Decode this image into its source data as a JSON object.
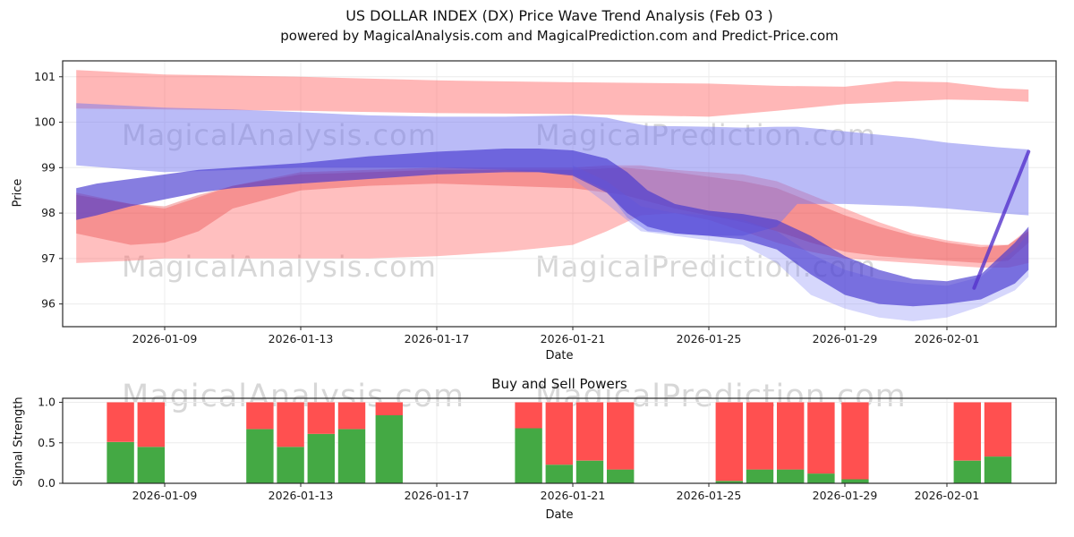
{
  "header": {
    "title": "US DOLLAR INDEX (DX) Price Wave Trend Analysis (Feb 03 )",
    "subtitle": "powered by MagicalAnalysis.com and MagicalPrediction.com and Predict-Price.com"
  },
  "watermarks": {
    "analysis": "MagicalAnalysis.com",
    "prediction": "MagicalPrediction.com"
  },
  "colors": {
    "red_band": "#ff5f5f",
    "red_inner_band": "#e63c3c",
    "blue_band": "#7678f0",
    "blue_pale_band": "#8a8df5",
    "dark_core_band": "#4538cf",
    "purple_line": "#5533cc",
    "bar_green": "#44a944",
    "bar_red": "#ff5050",
    "grid": "#ececec",
    "axis": "#2a2a2a",
    "watermark_gray": "#969696"
  },
  "chart_data": [
    {
      "type": "area",
      "title": "US DOLLAR INDEX (DX) Price Wave Trend Analysis (Feb 03 )",
      "subtitle": "powered by MagicalAnalysis.com and MagicalPrediction.com and Predict-Price.com",
      "xlabel": "Date",
      "ylabel": "Price",
      "x_start_date": "2026-01-06",
      "x_unit": "days since x_start_date",
      "ylim": [
        95.5,
        101.35
      ],
      "grid": true,
      "legend": false,
      "yticks": [
        "96",
        "97",
        "98",
        "99",
        "100",
        "101"
      ],
      "ytick_values": [
        96,
        97,
        98,
        99,
        100,
        101
      ],
      "xticks": [
        {
          "day": 3,
          "label": "2026-01-09"
        },
        {
          "day": 7,
          "label": "2026-01-13"
        },
        {
          "day": 11,
          "label": "2026-01-17"
        },
        {
          "day": 15,
          "label": "2026-01-21"
        },
        {
          "day": 19,
          "label": "2026-01-25"
        },
        {
          "day": 23,
          "label": "2026-01-29"
        },
        {
          "day": 26,
          "label": "2026-02-01"
        }
      ],
      "bands": [
        {
          "name": "upper-red-forecast-band",
          "color": "#ff5f5f",
          "opacity": 0.45,
          "points": [
            [
              0.4,
              101.15,
              100.3
            ],
            [
              3,
              101.05,
              100.28
            ],
            [
              7,
              101.0,
              100.25
            ],
            [
              11,
              100.92,
              100.2
            ],
            [
              15,
              100.88,
              100.18
            ],
            [
              19,
              100.85,
              100.12
            ],
            [
              21,
              100.8,
              100.25
            ],
            [
              23,
              100.78,
              100.4
            ],
            [
              24.5,
              100.9,
              100.45
            ],
            [
              26,
              100.88,
              100.5
            ],
            [
              27.5,
              100.75,
              100.48
            ],
            [
              28.4,
              100.72,
              100.45
            ]
          ]
        },
        {
          "name": "lower-red-wide-band",
          "color": "#ff5f5f",
          "opacity": 0.4,
          "points": [
            [
              0.4,
              98.45,
              96.9
            ],
            [
              2,
              98.2,
              96.95
            ],
            [
              3,
              98.1,
              97.0
            ],
            [
              4,
              98.35,
              97.0
            ],
            [
              5,
              98.6,
              97.0
            ],
            [
              7,
              98.9,
              97.0
            ],
            [
              9,
              98.95,
              97.0
            ],
            [
              11,
              99.0,
              97.05
            ],
            [
              13,
              99.0,
              97.15
            ],
            [
              15,
              99.0,
              97.3
            ],
            [
              16,
              99.05,
              97.6
            ],
            [
              17,
              99.05,
              97.95
            ],
            [
              18,
              98.95,
              98.0
            ],
            [
              19,
              98.9,
              97.85
            ],
            [
              20,
              98.85,
              97.6
            ],
            [
              21,
              98.7,
              97.35
            ],
            [
              22,
              98.4,
              97.15
            ],
            [
              23,
              98.1,
              97.0
            ],
            [
              24,
              97.8,
              96.95
            ],
            [
              25,
              97.55,
              96.9
            ],
            [
              26,
              97.4,
              96.85
            ],
            [
              27,
              97.3,
              96.8
            ],
            [
              27.8,
              97.3,
              96.8
            ],
            [
              28.4,
              97.65,
              96.9
            ]
          ]
        },
        {
          "name": "inner-red-band",
          "color": "#e63c3c",
          "opacity": 0.35,
          "points": [
            [
              0.4,
              98.4,
              97.55
            ],
            [
              2,
              98.2,
              97.3
            ],
            [
              3,
              98.15,
              97.35
            ],
            [
              4,
              98.4,
              97.6
            ],
            [
              5,
              98.6,
              98.1
            ],
            [
              7,
              98.85,
              98.5
            ],
            [
              9,
              98.9,
              98.6
            ],
            [
              11,
              98.95,
              98.65
            ],
            [
              13,
              98.95,
              98.6
            ],
            [
              15,
              98.95,
              98.55
            ],
            [
              16.5,
              99.0,
              98.4
            ],
            [
              18,
              98.9,
              98.1
            ],
            [
              19,
              98.8,
              97.95
            ],
            [
              20,
              98.7,
              97.8
            ],
            [
              21,
              98.55,
              97.6
            ],
            [
              22,
              98.25,
              97.35
            ],
            [
              23,
              97.95,
              97.15
            ],
            [
              24,
              97.7,
              97.05
            ],
            [
              25,
              97.5,
              97.0
            ],
            [
              26,
              97.35,
              96.95
            ],
            [
              27,
              97.25,
              96.9
            ],
            [
              27.8,
              97.3,
              96.95
            ],
            [
              28.4,
              97.6,
              97.35
            ]
          ]
        },
        {
          "name": "upper-blue-forecast-band",
          "color": "#7678f0",
          "opacity": 0.5,
          "points": [
            [
              0.4,
              100.42,
              99.05
            ],
            [
              3,
              100.32,
              98.9
            ],
            [
              5,
              100.28,
              98.95
            ],
            [
              7,
              100.22,
              99.0
            ],
            [
              9,
              100.15,
              99.0
            ],
            [
              11,
              100.12,
              99.0
            ],
            [
              13,
              100.12,
              98.95
            ],
            [
              15,
              100.15,
              98.85
            ],
            [
              16,
              100.1,
              98.5
            ],
            [
              16.6,
              100.0,
              97.9
            ],
            [
              17.2,
              99.92,
              97.6
            ],
            [
              19,
              99.9,
              97.5
            ],
            [
              20,
              99.88,
              97.5
            ],
            [
              21,
              99.9,
              97.7
            ],
            [
              21.6,
              99.9,
              98.2
            ],
            [
              23,
              99.8,
              98.2
            ],
            [
              25,
              99.65,
              98.15
            ],
            [
              26,
              99.55,
              98.1
            ],
            [
              27.5,
              99.45,
              98.0
            ],
            [
              28.4,
              99.4,
              97.95
            ]
          ]
        },
        {
          "name": "pale-blue-drop-band",
          "color": "#8a8df5",
          "opacity": 0.35,
          "points": [
            [
              15,
              99.05,
              98.75
            ],
            [
              16,
              98.7,
              98.2
            ],
            [
              17,
              98.15,
              97.6
            ],
            [
              18,
              98.0,
              97.5
            ],
            [
              19,
              97.95,
              97.4
            ],
            [
              20,
              97.85,
              97.3
            ],
            [
              21,
              97.6,
              96.9
            ],
            [
              22,
              97.1,
              96.2
            ],
            [
              23,
              96.75,
              95.9
            ],
            [
              24,
              96.55,
              95.7
            ],
            [
              25,
              96.45,
              95.62
            ],
            [
              26,
              96.4,
              95.7
            ],
            [
              27,
              96.6,
              95.95
            ],
            [
              28,
              97.2,
              96.3
            ],
            [
              28.4,
              97.55,
              96.6
            ]
          ]
        },
        {
          "name": "dark-core-trend-band",
          "color": "#4538cf",
          "opacity": 0.65,
          "points": [
            [
              0.4,
              98.55,
              97.85
            ],
            [
              1,
              98.65,
              97.95
            ],
            [
              2,
              98.75,
              98.15
            ],
            [
              3,
              98.85,
              98.3
            ],
            [
              4,
              98.95,
              98.45
            ],
            [
              5,
              99.0,
              98.55
            ],
            [
              7,
              99.1,
              98.65
            ],
            [
              9,
              99.25,
              98.75
            ],
            [
              11,
              99.35,
              98.85
            ],
            [
              13,
              99.42,
              98.9
            ],
            [
              14,
              99.42,
              98.9
            ],
            [
              15,
              99.38,
              98.82
            ],
            [
              16,
              99.2,
              98.45
            ],
            [
              16.6,
              98.9,
              98.0
            ],
            [
              17.2,
              98.5,
              97.7
            ],
            [
              18,
              98.2,
              97.55
            ],
            [
              19,
              98.05,
              97.5
            ],
            [
              20,
              97.98,
              97.42
            ],
            [
              21,
              97.85,
              97.2
            ],
            [
              22,
              97.5,
              96.65
            ],
            [
              23,
              97.05,
              96.2
            ],
            [
              24,
              96.75,
              96.0
            ],
            [
              25,
              96.55,
              95.95
            ],
            [
              26,
              96.5,
              96.0
            ],
            [
              27,
              96.65,
              96.1
            ],
            [
              28,
              97.35,
              96.45
            ],
            [
              28.4,
              97.7,
              96.75
            ]
          ]
        }
      ],
      "lines": [
        {
          "name": "purple-spike-line",
          "color": "#5533cc",
          "opacity": 0.8,
          "width": 4,
          "points": [
            [
              26.8,
              96.35
            ],
            [
              28.4,
              99.35
            ]
          ]
        }
      ]
    },
    {
      "type": "bar",
      "title": "Buy and Sell Powers",
      "xlabel": "Date",
      "ylabel": "Signal Strength",
      "x_start_date": "2026-01-06",
      "x_unit": "days since x_start_date",
      "ylim": [
        0,
        1.05
      ],
      "grid": true,
      "legend": false,
      "yticks": [
        "0.0",
        "0.5",
        "1.0"
      ],
      "ytick_values": [
        0,
        0.5,
        1
      ],
      "xticks": [
        {
          "day": 3,
          "label": "2026-01-09"
        },
        {
          "day": 7,
          "label": "2026-01-13"
        },
        {
          "day": 11,
          "label": "2026-01-17"
        },
        {
          "day": 15,
          "label": "2026-01-21"
        },
        {
          "day": 19,
          "label": "2026-01-25"
        },
        {
          "day": 23,
          "label": "2026-01-29"
        },
        {
          "day": 26,
          "label": "2026-02-01"
        }
      ],
      "bar_width_days": 0.8,
      "bars": [
        {
          "day": 1.7,
          "buy": 0.51,
          "sell": 0.49
        },
        {
          "day": 2.6,
          "buy": 0.45,
          "sell": 0.55
        },
        {
          "day": 5.8,
          "buy": 0.67,
          "sell": 0.33
        },
        {
          "day": 6.7,
          "buy": 0.45,
          "sell": 0.55
        },
        {
          "day": 7.6,
          "buy": 0.61,
          "sell": 0.39
        },
        {
          "day": 8.5,
          "buy": 0.67,
          "sell": 0.33
        },
        {
          "day": 9.6,
          "buy": 0.84,
          "sell": 0.16
        },
        {
          "day": 13.7,
          "buy": 0.68,
          "sell": 0.32
        },
        {
          "day": 14.6,
          "buy": 0.23,
          "sell": 0.77
        },
        {
          "day": 15.5,
          "buy": 0.28,
          "sell": 0.72
        },
        {
          "day": 16.4,
          "buy": 0.17,
          "sell": 0.83
        },
        {
          "day": 19.6,
          "buy": 0.03,
          "sell": 0.97
        },
        {
          "day": 20.5,
          "buy": 0.17,
          "sell": 0.83
        },
        {
          "day": 21.4,
          "buy": 0.17,
          "sell": 0.83
        },
        {
          "day": 22.3,
          "buy": 0.12,
          "sell": 0.88
        },
        {
          "day": 23.3,
          "buy": 0.05,
          "sell": 0.95
        },
        {
          "day": 26.6,
          "buy": 0.28,
          "sell": 0.72
        },
        {
          "day": 27.5,
          "buy": 0.33,
          "sell": 0.67
        }
      ]
    }
  ]
}
